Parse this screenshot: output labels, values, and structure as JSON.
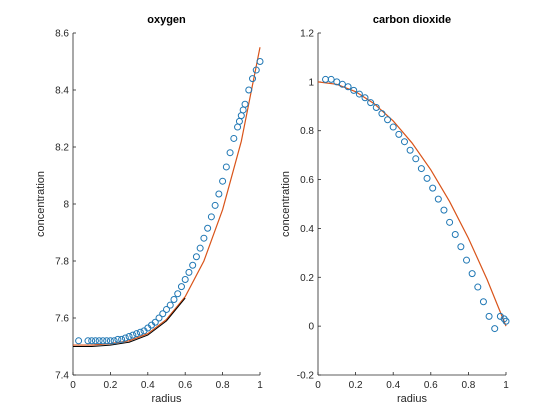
{
  "colors": {
    "marker": "#1f77b4",
    "fit": "#d9541a",
    "reference": "#000000",
    "axis": "#262626"
  },
  "chart_data": [
    {
      "type": "scatter",
      "title": "oxygen",
      "xlabel": "radius",
      "ylabel": "concentration",
      "xlim": [
        0,
        1
      ],
      "ylim": [
        7.4,
        8.6
      ],
      "xticks": [
        0,
        0.2,
        0.4,
        0.6,
        0.8,
        1
      ],
      "yticks": [
        7.4,
        7.6,
        7.8,
        8,
        8.2,
        8.4,
        8.6
      ],
      "xtick_labels": [
        "0",
        "0.2",
        "0.4",
        "0.6",
        "0.8",
        "1"
      ],
      "ytick_labels": [
        "7.4",
        "7.6",
        "7.8",
        "8",
        "8.2",
        "8.4",
        "8.6"
      ],
      "grid": false,
      "legend": "none",
      "series": [
        {
          "kind": "markers",
          "x": [
            0.03,
            0.08,
            0.1,
            0.12,
            0.14,
            0.16,
            0.18,
            0.2,
            0.22,
            0.24,
            0.26,
            0.28,
            0.3,
            0.32,
            0.34,
            0.36,
            0.38,
            0.4,
            0.42,
            0.44,
            0.46,
            0.48,
            0.5,
            0.52,
            0.54,
            0.56,
            0.58,
            0.6,
            0.62,
            0.64,
            0.66,
            0.68,
            0.7,
            0.72,
            0.74,
            0.76,
            0.78,
            0.8,
            0.82,
            0.84,
            0.86,
            0.88,
            0.89,
            0.9,
            0.91,
            0.92,
            0.94,
            0.96,
            0.98,
            1.0
          ],
          "y": [
            7.52,
            7.52,
            7.52,
            7.52,
            7.52,
            7.52,
            7.52,
            7.52,
            7.52,
            7.525,
            7.525,
            7.53,
            7.535,
            7.54,
            7.545,
            7.55,
            7.555,
            7.565,
            7.575,
            7.585,
            7.6,
            7.615,
            7.63,
            7.645,
            7.665,
            7.685,
            7.71,
            7.735,
            7.76,
            7.785,
            7.815,
            7.845,
            7.88,
            7.915,
            7.955,
            7.995,
            8.035,
            8.08,
            8.13,
            8.18,
            8.23,
            8.27,
            8.29,
            8.31,
            8.33,
            8.35,
            8.4,
            8.44,
            8.47,
            8.5
          ]
        },
        {
          "kind": "line",
          "name": "",
          "x": [
            0,
            0.1,
            0.2,
            0.3,
            0.4,
            0.5,
            0.6,
            0.7,
            0.8,
            0.9,
            1.0
          ],
          "y": [
            7.505,
            7.505,
            7.51,
            7.52,
            7.545,
            7.595,
            7.675,
            7.8,
            7.98,
            8.22,
            8.55
          ]
        },
        {
          "kind": "reference",
          "x": [
            0,
            0.1,
            0.2,
            0.3,
            0.4,
            0.5,
            0.6
          ],
          "y": [
            7.5,
            7.5,
            7.505,
            7.515,
            7.54,
            7.59,
            7.67
          ]
        }
      ]
    },
    {
      "type": "scatter",
      "title": "carbon dioxide",
      "xlabel": "radius",
      "ylabel": "concentration",
      "xlim": [
        0,
        1
      ],
      "ylim": [
        -0.2,
        1.2
      ],
      "xticks": [
        0,
        0.2,
        0.4,
        0.6,
        0.8,
        1
      ],
      "yticks": [
        -0.2,
        0,
        0.2,
        0.4,
        0.6,
        0.8,
        1,
        1.2
      ],
      "xtick_labels": [
        "0",
        "0.2",
        "0.4",
        "0.6",
        "0.8",
        "1"
      ],
      "ytick_labels": [
        "-0.2",
        "0",
        "0.2",
        "0.4",
        "0.6",
        "0.8",
        "1",
        "1.2"
      ],
      "grid": false,
      "legend": "none",
      "series": [
        {
          "kind": "markers",
          "x": [
            0.04,
            0.07,
            0.1,
            0.13,
            0.16,
            0.19,
            0.22,
            0.25,
            0.28,
            0.31,
            0.34,
            0.37,
            0.4,
            0.43,
            0.46,
            0.49,
            0.52,
            0.55,
            0.58,
            0.61,
            0.64,
            0.67,
            0.7,
            0.73,
            0.76,
            0.79,
            0.82,
            0.85,
            0.88,
            0.91,
            0.94,
            0.97,
            0.99,
            1.0
          ],
          "y": [
            1.01,
            1.01,
            1.0,
            0.99,
            0.98,
            0.965,
            0.95,
            0.935,
            0.915,
            0.895,
            0.87,
            0.845,
            0.815,
            0.785,
            0.755,
            0.72,
            0.685,
            0.645,
            0.605,
            0.565,
            0.52,
            0.475,
            0.425,
            0.375,
            0.325,
            0.27,
            0.215,
            0.16,
            0.1,
            0.04,
            -0.01,
            0.04,
            0.03,
            0.02
          ]
        },
        {
          "kind": "line",
          "name": "",
          "x": [
            0,
            0.1,
            0.2,
            0.3,
            0.4,
            0.5,
            0.6,
            0.7,
            0.8,
            0.9,
            1.0
          ],
          "y": [
            1.0,
            0.99,
            0.96,
            0.91,
            0.84,
            0.75,
            0.64,
            0.51,
            0.36,
            0.19,
            0.0
          ]
        }
      ]
    }
  ]
}
